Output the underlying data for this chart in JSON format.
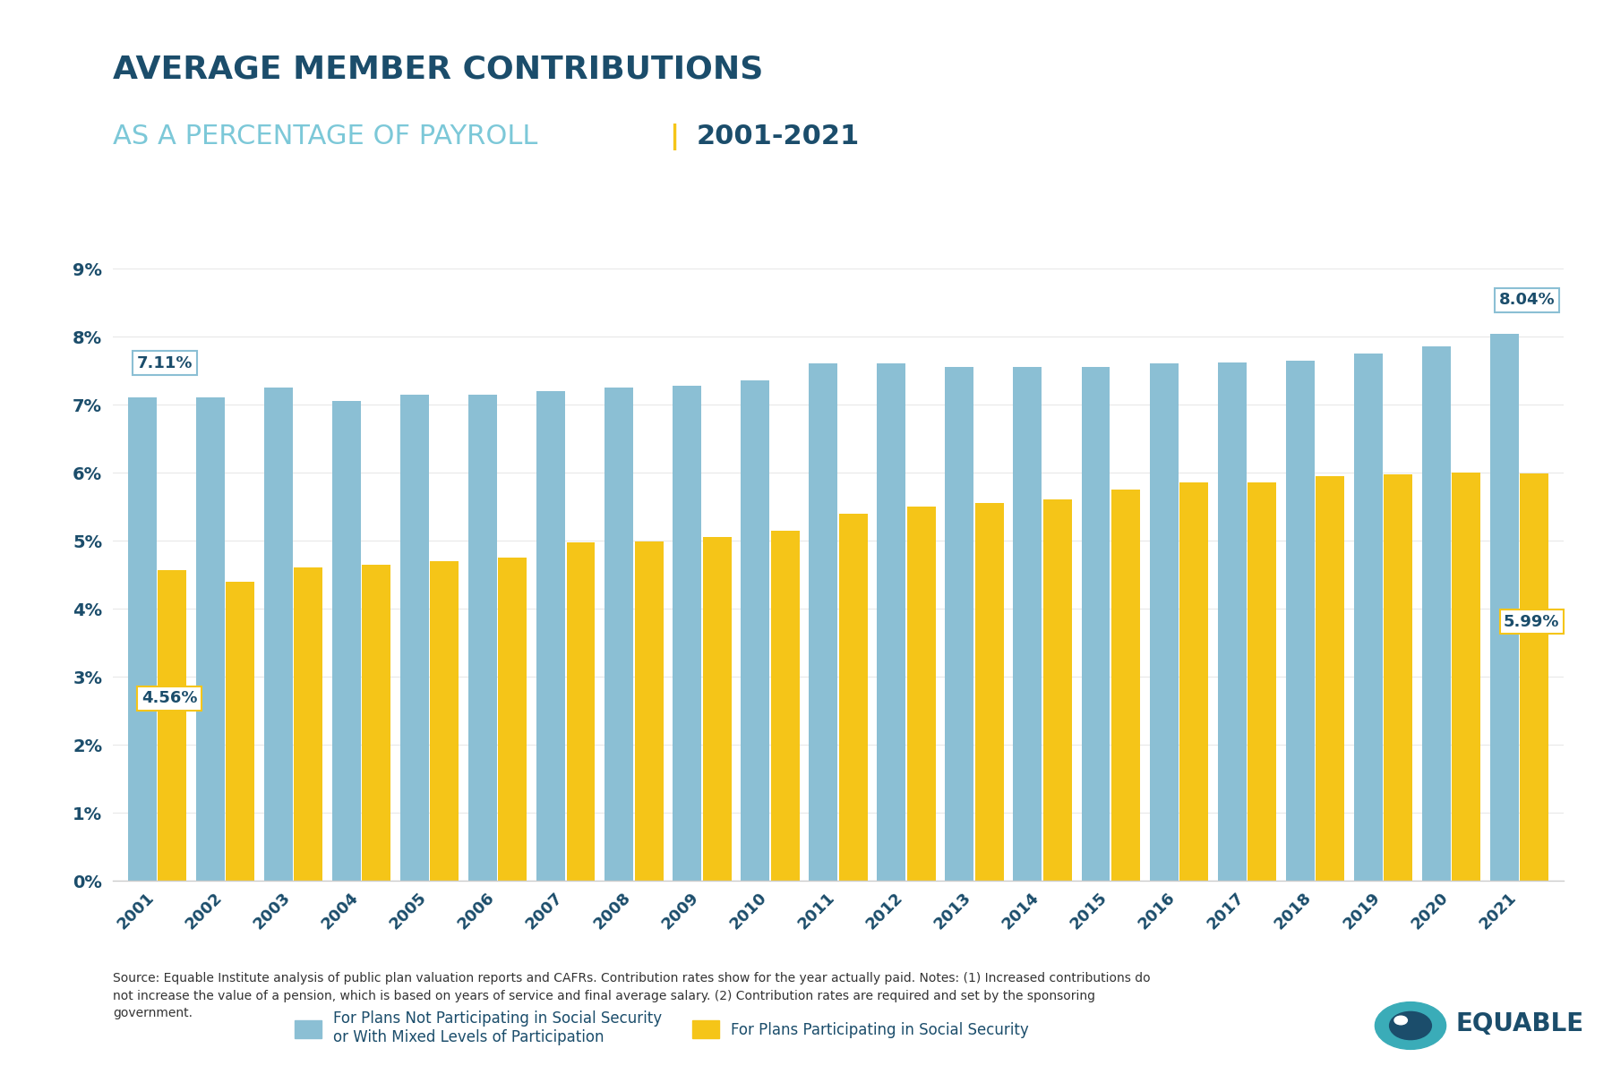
{
  "title_line1": "AVERAGE MEMBER CONTRIBUTIONS",
  "title_line2_part1": "AS A PERCENTAGE OF PAYROLL",
  "title_line2_sep": "|",
  "title_line2_part2": "2001-2021",
  "years": [
    2001,
    2002,
    2003,
    2004,
    2005,
    2006,
    2007,
    2008,
    2009,
    2010,
    2011,
    2012,
    2013,
    2014,
    2015,
    2016,
    2017,
    2018,
    2019,
    2020,
    2021
  ],
  "blue_values": [
    7.11,
    7.11,
    7.25,
    7.05,
    7.15,
    7.15,
    7.2,
    7.25,
    7.27,
    7.35,
    7.6,
    7.6,
    7.55,
    7.55,
    7.55,
    7.6,
    7.62,
    7.65,
    7.75,
    7.85,
    8.04
  ],
  "gold_values": [
    4.56,
    4.4,
    4.6,
    4.65,
    4.7,
    4.75,
    4.97,
    4.99,
    5.05,
    5.15,
    5.4,
    5.5,
    5.55,
    5.6,
    5.75,
    5.85,
    5.85,
    5.95,
    5.97,
    6.0,
    5.99
  ],
  "blue_color": "#8BBFD4",
  "gold_color": "#F5C518",
  "title1_color": "#1B4D6B",
  "title2_color1": "#7CC8D8",
  "title2_sep_color": "#F5C518",
  "title2_color2": "#1B4D6B",
  "axis_color": "#1B4D6B",
  "tick_color": "#1B4D6B",
  "ylim": [
    0,
    9
  ],
  "yticks": [
    0,
    1,
    2,
    3,
    4,
    5,
    6,
    7,
    8,
    9
  ],
  "annotate_blue_first": "7.11%",
  "annotate_blue_last": "8.04%",
  "annotate_gold_first": "4.56%",
  "annotate_gold_last": "5.99%",
  "legend_blue_label": "For Plans Not Participating in Social Security\nor With Mixed Levels of Participation",
  "legend_gold_label": "For Plans Participating in Social Security",
  "footnote": "Source: Equable Institute analysis of public plan valuation reports and CAFRs. Contribution rates show for the year actually paid. Notes: (1) Increased contributions do\nnot increase the value of a pension, which is based on years of service and final average salary. (2) Contribution rates are required and set by the sponsoring\ngovernment.",
  "background_color": "#FFFFFF",
  "bar_width": 0.42,
  "bar_gap": 0.02
}
